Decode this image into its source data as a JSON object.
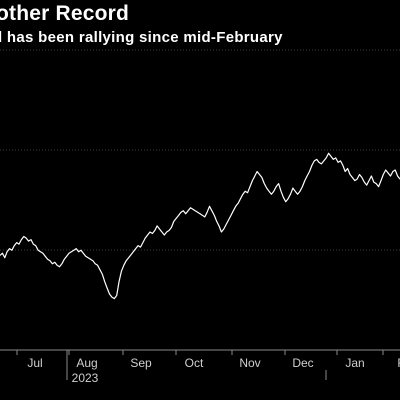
{
  "header": {
    "title": "other Record",
    "subtitle": "l has been rallying since mid-February"
  },
  "colors": {
    "background": "#000000",
    "line": "#ffffff",
    "grid": "#3a3a3a",
    "text": "#cfcfcf"
  },
  "chart_data": {
    "type": "line",
    "title": "other Record",
    "subtitle": "l has been rallying since mid-February",
    "xlabel": "",
    "ylabel": "",
    "x_tick_labels": [
      "Jul",
      "Aug",
      "Sep",
      "Oct",
      "Nov",
      "Dec",
      "Jan",
      "F"
    ],
    "year_label": "2023",
    "grid": "horizontal",
    "y_gridlines": 3,
    "series": [
      {
        "values": [
          65,
          68,
          62,
          70,
          74,
          72,
          78,
          82,
          80,
          86,
          90,
          88,
          84,
          86,
          80,
          78,
          72,
          70,
          68,
          64,
          60,
          58,
          54,
          56,
          52,
          50,
          54,
          60,
          64,
          68,
          70,
          72,
          74,
          70,
          72,
          68,
          64,
          62,
          60,
          58,
          54,
          52,
          46,
          40,
          30,
          22,
          14,
          10,
          8,
          12,
          30,
          44,
          52,
          58,
          62,
          66,
          70,
          74,
          78,
          76,
          82,
          88,
          92,
          96,
          94,
          98,
          104,
          100,
          96,
          92,
          96,
          98,
          102,
          110,
          114,
          118,
          122,
          124,
          120,
          124,
          128,
          126,
          124,
          122,
          120,
          118,
          116,
          122,
          130,
          124,
          118,
          110,
          104,
          96,
          100,
          106,
          112,
          118,
          124,
          130,
          134,
          140,
          146,
          150,
          148,
          156,
          164,
          170,
          176,
          172,
          168,
          160,
          154,
          150,
          146,
          150,
          156,
          160,
          150,
          142,
          136,
          140,
          146,
          154,
          150,
          146,
          150,
          156,
          164,
          170,
          176,
          184,
          190,
          192,
          188,
          186,
          190,
          194,
          200,
          196,
          192,
          194,
          188,
          190,
          184,
          176,
          180,
          172,
          168,
          164,
          166,
          172,
          168,
          162,
          158,
          164,
          170,
          162,
          160,
          156,
          164,
          172,
          178,
          174,
          170,
          176,
          178,
          170,
          166
        ]
      }
    ]
  }
}
